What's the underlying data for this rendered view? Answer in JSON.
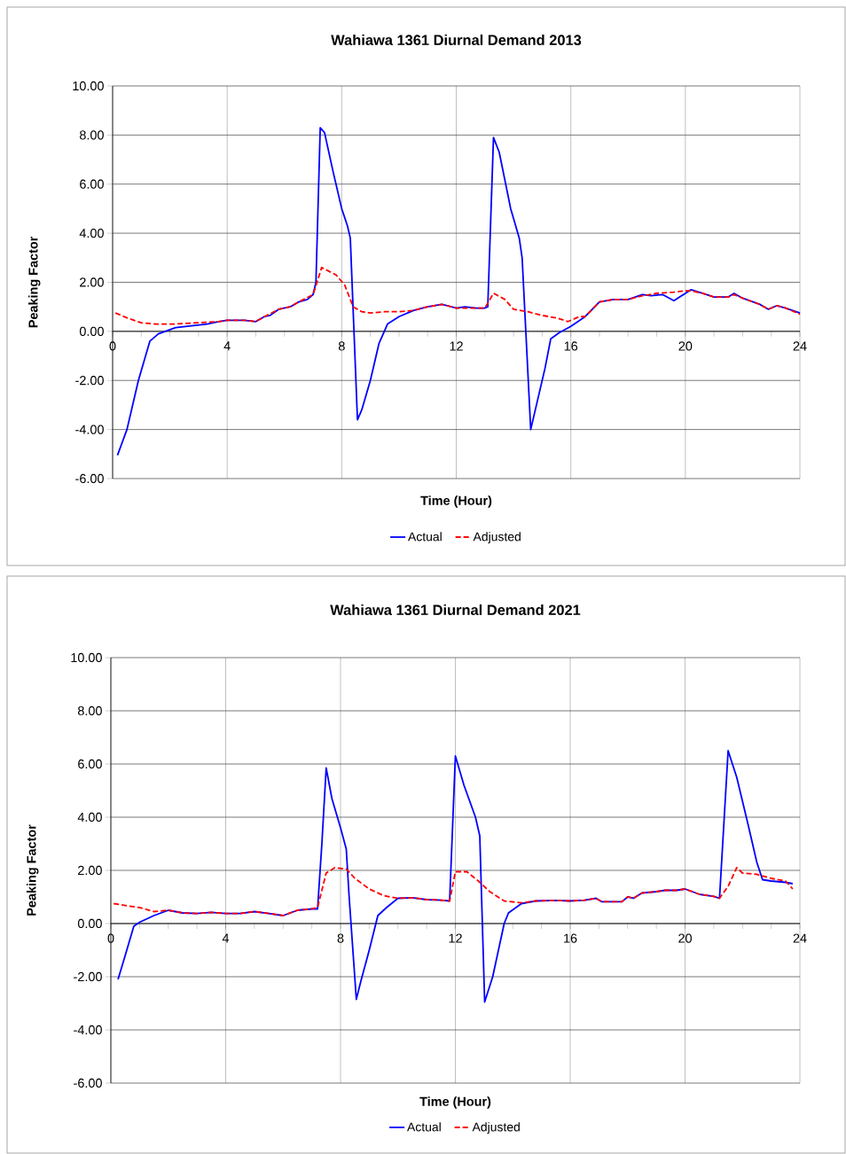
{
  "chart_data": [
    {
      "type": "line",
      "title": "Wahiawa 1361 Diurnal Demand 2013",
      "xlabel": "Time (Hour)",
      "ylabel": "Peaking Factor",
      "xlim": [
        0,
        24
      ],
      "xticks": [
        0,
        {
          "value": 1,
          "label": null
        },
        {
          "value": 2,
          "label": null
        },
        {
          "value": 3,
          "label": null
        },
        4,
        {
          "value": 5,
          "label": null
        },
        {
          "value": 6,
          "label": null
        },
        {
          "value": 7,
          "label": null
        },
        8,
        {
          "value": 9,
          "label": null
        },
        {
          "value": 10,
          "label": null
        },
        {
          "value": 11,
          "label": null
        },
        12,
        {
          "value": 13,
          "label": null
        },
        {
          "value": 14,
          "label": null
        },
        {
          "value": 15,
          "label": null
        },
        16,
        {
          "value": 17,
          "label": null
        },
        {
          "value": 18,
          "label": null
        },
        {
          "value": 19,
          "label": null
        },
        20,
        {
          "value": 21,
          "label": null
        },
        {
          "value": 22,
          "label": null
        },
        {
          "value": 23,
          "label": null
        },
        24
      ],
      "ylim": [
        -6,
        10
      ],
      "yticks": [
        {
          "value": -6,
          "label": "-6.00"
        },
        {
          "value": -4,
          "label": "-4.00"
        },
        {
          "value": -2,
          "label": "-2.00"
        },
        {
          "value": 0,
          "label": "0.00"
        },
        {
          "value": 2,
          "label": "2.00"
        },
        {
          "value": 4,
          "label": "4.00"
        },
        {
          "value": 6,
          "label": "6.00"
        },
        {
          "value": 8,
          "label": "8.00"
        },
        {
          "value": 10,
          "label": "10.00"
        }
      ],
      "grid": true,
      "legend": "bottom",
      "series": [
        {
          "name": "Actual",
          "color": "#0000ff",
          "line_style": "solid",
          "x": [
            0.17,
            0.5,
            0.9,
            1.3,
            1.6,
            2.2,
            3.3,
            3.7,
            4.0,
            4.6,
            5.0,
            5.3,
            5.5,
            5.8,
            6.2,
            6.5,
            6.8,
            7.0,
            7.1,
            7.25,
            7.4,
            7.7,
            8.0,
            8.2,
            8.3,
            8.55,
            8.7,
            9.0,
            9.3,
            9.6,
            10.0,
            10.5,
            11.0,
            11.5,
            12.0,
            12.3,
            12.7,
            13.0,
            13.1,
            13.3,
            13.5,
            13.9,
            14.2,
            14.3,
            14.6,
            14.8,
            15.1,
            15.3,
            15.6,
            16.0,
            16.5,
            17.0,
            17.5,
            18.0,
            18.5,
            18.8,
            19.2,
            19.6,
            20.0,
            20.2,
            20.6,
            21.0,
            21.5,
            21.7,
            22.0,
            22.6,
            22.9,
            23.2,
            23.5,
            24.0
          ],
          "values": [
            -5.05,
            -4.0,
            -2.0,
            -0.4,
            -0.1,
            0.15,
            0.3,
            0.4,
            0.45,
            0.45,
            0.4,
            0.6,
            0.65,
            0.9,
            1.0,
            1.2,
            1.3,
            1.5,
            2.0,
            8.3,
            8.1,
            6.5,
            5.0,
            4.3,
            3.8,
            -3.6,
            -3.2,
            -2.0,
            -0.5,
            0.3,
            0.6,
            0.85,
            1.0,
            1.1,
            0.95,
            1.0,
            0.95,
            0.95,
            1.0,
            7.9,
            7.3,
            5.0,
            3.8,
            3.0,
            -4.0,
            -3.0,
            -1.5,
            -0.3,
            -0.05,
            0.2,
            0.6,
            1.2,
            1.3,
            1.3,
            1.5,
            1.45,
            1.5,
            1.25,
            1.55,
            1.7,
            1.55,
            1.4,
            1.4,
            1.55,
            1.35,
            1.1,
            0.9,
            1.05,
            0.95,
            0.75
          ]
        },
        {
          "name": "Adjusted",
          "color": "#ff0000",
          "line_style": "dashed",
          "x": [
            0.1,
            0.5,
            1.0,
            1.5,
            2.2,
            3.0,
            3.7,
            4.0,
            4.6,
            5.0,
            5.3,
            5.8,
            6.2,
            6.5,
            7.0,
            7.3,
            7.8,
            8.1,
            8.4,
            8.7,
            9.0,
            9.5,
            10.0,
            10.5,
            11.0,
            11.5,
            12.0,
            13.0,
            13.3,
            13.7,
            14.0,
            14.5,
            15.0,
            15.5,
            15.9,
            16.3,
            16.5,
            17.0,
            17.5,
            18.0,
            18.5,
            19.0,
            19.6,
            20.0,
            20.2,
            20.6,
            21.0,
            21.5,
            21.7,
            22.0,
            22.6,
            22.9,
            23.2,
            23.5,
            24.0
          ],
          "values": [
            0.75,
            0.55,
            0.35,
            0.3,
            0.3,
            0.35,
            0.4,
            0.45,
            0.45,
            0.4,
            0.6,
            0.9,
            1.0,
            1.2,
            1.5,
            2.6,
            2.3,
            1.9,
            1.0,
            0.8,
            0.75,
            0.8,
            0.8,
            0.85,
            1.0,
            1.1,
            0.95,
            0.95,
            1.55,
            1.3,
            0.9,
            0.8,
            0.65,
            0.55,
            0.4,
            0.6,
            0.6,
            1.2,
            1.3,
            1.3,
            1.45,
            1.55,
            1.6,
            1.65,
            1.65,
            1.55,
            1.4,
            1.4,
            1.5,
            1.35,
            1.1,
            0.9,
            1.05,
            0.95,
            0.7
          ]
        }
      ]
    },
    {
      "type": "line",
      "title": "Wahiawa 1361 Diurnal Demand 2021",
      "xlabel": "Time (Hour)",
      "ylabel": "Peaking Factor",
      "xlim": [
        0,
        24
      ],
      "xticks": [
        0,
        {
          "value": 1,
          "label": null
        },
        {
          "value": 2,
          "label": null
        },
        {
          "value": 3,
          "label": null
        },
        4,
        {
          "value": 5,
          "label": null
        },
        {
          "value": 6,
          "label": null
        },
        {
          "value": 7,
          "label": null
        },
        8,
        {
          "value": 9,
          "label": null
        },
        {
          "value": 10,
          "label": null
        },
        {
          "value": 11,
          "label": null
        },
        12,
        {
          "value": 13,
          "label": null
        },
        {
          "value": 14,
          "label": null
        },
        {
          "value": 15,
          "label": null
        },
        16,
        {
          "value": 17,
          "label": null
        },
        {
          "value": 18,
          "label": null
        },
        {
          "value": 19,
          "label": null
        },
        20,
        {
          "value": 21,
          "label": null
        },
        {
          "value": 22,
          "label": null
        },
        {
          "value": 23,
          "label": null
        },
        24
      ],
      "ylim": [
        -6,
        10
      ],
      "yticks": [
        {
          "value": -6,
          "label": "-6.00"
        },
        {
          "value": -4,
          "label": "-4.00"
        },
        {
          "value": -2,
          "label": "-2.00"
        },
        {
          "value": 0,
          "label": "0.00"
        },
        {
          "value": 2,
          "label": "2.00"
        },
        {
          "value": 4,
          "label": "4.00"
        },
        {
          "value": 6,
          "label": "6.00"
        },
        {
          "value": 8,
          "label": "8.00"
        },
        {
          "value": 10,
          "label": "10.00"
        }
      ],
      "grid": true,
      "legend": "bottom",
      "series": [
        {
          "name": "Actual",
          "color": "#0000ff",
          "line_style": "solid",
          "x": [
            0.25,
            0.5,
            0.8,
            1.0,
            1.5,
            2.0,
            2.5,
            3.0,
            3.5,
            4.0,
            4.5,
            5.0,
            5.5,
            6.0,
            6.5,
            7.0,
            7.2,
            7.35,
            7.5,
            7.7,
            8.0,
            8.2,
            8.3,
            8.55,
            8.7,
            9.0,
            9.3,
            9.6,
            10.0,
            10.5,
            11.0,
            11.5,
            11.8,
            12.0,
            12.3,
            12.7,
            12.85,
            13.02,
            13.3,
            13.7,
            13.85,
            14.3,
            14.8,
            15.5,
            16.0,
            16.5,
            16.9,
            17.1,
            17.8,
            18.0,
            18.2,
            18.5,
            19.0,
            19.3,
            19.7,
            20.0,
            20.5,
            21.0,
            21.2,
            21.5,
            21.8,
            22.2,
            22.5,
            22.7,
            23.0,
            23.5,
            23.75
          ],
          "values": [
            -2.1,
            -1.2,
            -0.1,
            0.05,
            0.3,
            0.5,
            0.4,
            0.38,
            0.42,
            0.38,
            0.38,
            0.45,
            0.38,
            0.3,
            0.5,
            0.55,
            0.55,
            3.0,
            5.85,
            4.7,
            3.6,
            2.8,
            1.0,
            -2.85,
            -2.2,
            -1.0,
            0.3,
            0.6,
            0.95,
            0.97,
            0.9,
            0.88,
            0.85,
            6.3,
            5.2,
            4.0,
            3.3,
            -2.95,
            -2.0,
            0.0,
            0.4,
            0.75,
            0.85,
            0.87,
            0.85,
            0.88,
            0.95,
            0.82,
            0.82,
            1.0,
            0.95,
            1.15,
            1.2,
            1.25,
            1.25,
            1.3,
            1.1,
            1.02,
            0.95,
            6.5,
            5.5,
            3.7,
            2.3,
            1.65,
            1.6,
            1.55,
            1.5
          ]
        },
        {
          "name": "Adjusted",
          "color": "#ff0000",
          "line_style": "dashed",
          "x": [
            0.1,
            0.5,
            1.0,
            1.5,
            2.0,
            2.5,
            3.0,
            3.5,
            4.0,
            4.5,
            5.0,
            5.5,
            6.0,
            6.5,
            7.0,
            7.2,
            7.5,
            7.8,
            8.2,
            8.5,
            9.0,
            9.5,
            10.0,
            10.5,
            11.0,
            11.5,
            11.8,
            12.0,
            12.4,
            12.8,
            13.2,
            13.7,
            14.3,
            14.8,
            15.5,
            16.0,
            16.5,
            16.9,
            17.1,
            17.8,
            18.0,
            18.2,
            18.5,
            19.0,
            19.3,
            19.7,
            20.0,
            20.5,
            21.0,
            21.2,
            21.5,
            21.8,
            22.0,
            22.5,
            23.0,
            23.5,
            23.75
          ],
          "values": [
            0.75,
            0.68,
            0.6,
            0.45,
            0.5,
            0.4,
            0.38,
            0.42,
            0.38,
            0.38,
            0.45,
            0.38,
            0.3,
            0.5,
            0.55,
            0.6,
            1.9,
            2.1,
            2.05,
            1.7,
            1.3,
            1.05,
            0.95,
            0.97,
            0.9,
            0.88,
            0.85,
            1.95,
            1.95,
            1.6,
            1.2,
            0.85,
            0.78,
            0.85,
            0.87,
            0.85,
            0.88,
            0.95,
            0.82,
            0.82,
            1.0,
            0.95,
            1.15,
            1.2,
            1.25,
            1.25,
            1.3,
            1.1,
            1.02,
            0.95,
            1.4,
            2.1,
            1.9,
            1.85,
            1.7,
            1.6,
            1.3
          ]
        }
      ]
    }
  ]
}
